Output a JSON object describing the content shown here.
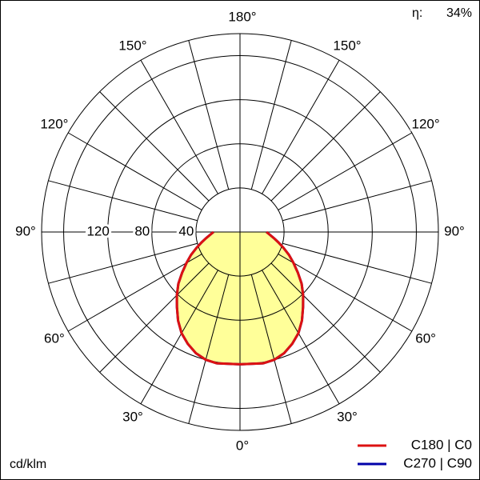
{
  "chart_data": {
    "type": "polar",
    "unit": "cd/klm",
    "eta_label": "η:",
    "efficiency": 34,
    "efficiency_label": "34%",
    "ylim": [
      0,
      180
    ],
    "yticks": [
      40,
      80,
      120
    ],
    "grid_rings": [
      40,
      80,
      120,
      160
    ],
    "angle_ticks": [
      {
        "value": 0,
        "label": "0°"
      },
      {
        "value": 30,
        "label": "30°"
      },
      {
        "value": 60,
        "label": "60°"
      },
      {
        "value": 90,
        "label": "90°"
      },
      {
        "value": 120,
        "label": "120°"
      },
      {
        "value": 150,
        "label": "150°"
      },
      {
        "value": 180,
        "label": "180°"
      }
    ],
    "angles": [
      0,
      5,
      10,
      15,
      20,
      25,
      30,
      35,
      40,
      45,
      50,
      55,
      60,
      65,
      70,
      75,
      80,
      85,
      90
    ],
    "fill_color": "#ffff99",
    "series": [
      {
        "name": "C270 | C90",
        "color": "#0000aa",
        "values": [
          120,
          120,
          121,
          120,
          117,
          112,
          106,
          98,
          89,
          81,
          73,
          64,
          56,
          49,
          42,
          36,
          31,
          27,
          24
        ]
      },
      {
        "name": "C180 | C0",
        "color": "#dd1111",
        "values": [
          120,
          120,
          121,
          120,
          117,
          112,
          106,
          98,
          89,
          81,
          73,
          64,
          56,
          49,
          42,
          36,
          31,
          27,
          24
        ]
      }
    ]
  }
}
